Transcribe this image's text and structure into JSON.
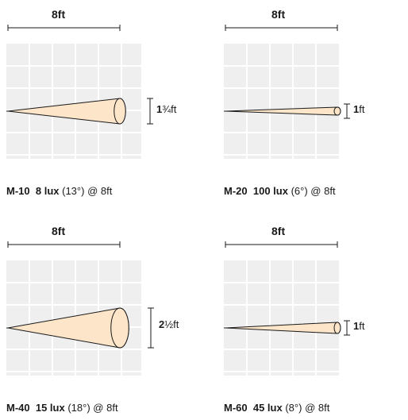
{
  "colors": {
    "grid_bg": "#efefef",
    "grid_line": "#ffffff",
    "beam_fill": "#fde5c9",
    "stroke": "#1a1a1a"
  },
  "diagrams": [
    {
      "width_label": "8ft",
      "height_main": "1",
      "height_frac": "¾",
      "height_unit": "ft",
      "model": "M-10",
      "lux": "8 lux",
      "angle": "(13°)",
      "distance": "@ 8ft",
      "beam_angle_deg": 13
    },
    {
      "width_label": "8ft",
      "height_main": "1",
      "height_frac": "",
      "height_unit": "ft",
      "model": "M-20",
      "lux": "100 lux",
      "angle": "(6°)",
      "distance": "@ 8ft",
      "beam_angle_deg": 6
    },
    {
      "width_label": "8ft",
      "height_main": "2",
      "height_frac": "½",
      "height_unit": "ft",
      "model": "M-40",
      "lux": "15 lux",
      "angle": "(18°)",
      "distance": "@ 8ft",
      "beam_angle_deg": 18
    },
    {
      "width_label": "8ft",
      "height_main": "1",
      "height_frac": "",
      "height_unit": "ft",
      "model": "M-60",
      "lux": "45 lux",
      "angle": "(8°)",
      "distance": "@ 8ft",
      "beam_angle_deg": 8
    }
  ]
}
